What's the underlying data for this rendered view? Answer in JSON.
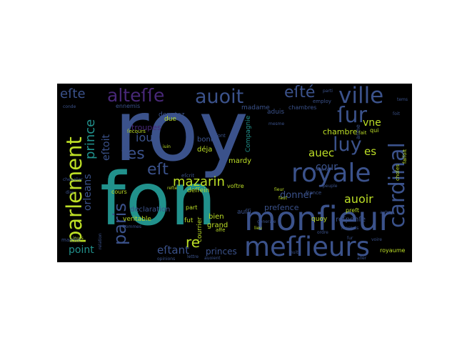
{
  "wordcloud": {
    "background": "#000000",
    "words": [
      {
        "text": "roy",
        "color": "#3b528b"
      },
      {
        "text": "fon",
        "color": "#21918c"
      },
      {
        "text": "monſieur",
        "color": "#3b528b"
      },
      {
        "text": "meſſieurs",
        "color": "#3b528b"
      },
      {
        "text": "royale",
        "color": "#3b528b"
      },
      {
        "text": "ville",
        "color": "#3b528b"
      },
      {
        "text": "auoit",
        "color": "#3b528b"
      },
      {
        "text": "alteſſe",
        "color": "#482878"
      },
      {
        "text": "parlement",
        "color": "#bddf26"
      },
      {
        "text": "cardinal",
        "color": "#3b528b"
      },
      {
        "text": "paris",
        "color": "#3b528b"
      },
      {
        "text": "luy",
        "color": "#3b528b"
      },
      {
        "text": "ſur",
        "color": "#3b528b"
      },
      {
        "text": "eſté",
        "color": "#3b528b"
      },
      {
        "text": "eſte",
        "color": "#3b528b"
      },
      {
        "text": "prince",
        "color": "#21918c"
      },
      {
        "text": "mazarin",
        "color": "#bddf26"
      },
      {
        "text": "eſt",
        "color": "#3b528b"
      },
      {
        "text": "ſes",
        "color": "#3b528b"
      },
      {
        "text": "iour",
        "color": "#3b528b"
      },
      {
        "text": "cour",
        "color": "#3b528b"
      },
      {
        "text": "auoir",
        "color": "#bddf26"
      },
      {
        "text": "auec",
        "color": "#bddf26"
      },
      {
        "text": "es",
        "color": "#bddf26"
      },
      {
        "text": "vne",
        "color": "#bddf26"
      },
      {
        "text": "eſtoit",
        "color": "#3b528b"
      },
      {
        "text": "orleans",
        "color": "#3b528b"
      },
      {
        "text": "point",
        "color": "#21918c"
      },
      {
        "text": "eſtant",
        "color": "#3b528b"
      },
      {
        "text": "re",
        "color": "#bddf26"
      },
      {
        "text": "princes",
        "color": "#3b528b"
      },
      {
        "text": "donner",
        "color": "#3b528b"
      },
      {
        "text": "chambre",
        "color": "#bddf26"
      },
      {
        "text": "reſponſe",
        "color": "#3b528b"
      },
      {
        "text": "preſence",
        "color": "#3b528b"
      },
      {
        "text": "troupes",
        "color": "#482878"
      },
      {
        "text": "mardy",
        "color": "#bddf26"
      },
      {
        "text": "bien",
        "color": "#bddf26"
      },
      {
        "text": "grand",
        "color": "#bddf26"
      },
      {
        "text": "déja",
        "color": "#bddf26"
      },
      {
        "text": "bonne",
        "color": "#3b528b"
      },
      {
        "text": "deſſein",
        "color": "#bddf26"
      },
      {
        "text": "declaration",
        "color": "#3b528b"
      },
      {
        "text": "veritable",
        "color": "#bddf26"
      },
      {
        "text": "fut",
        "color": "#bddf26"
      },
      {
        "text": "courrier",
        "color": "#bddf26"
      },
      {
        "text": "cours",
        "color": "#bddf26"
      },
      {
        "text": "voſtre",
        "color": "#bddf26"
      },
      {
        "text": "Compagnie",
        "color": "#21918c"
      },
      {
        "text": "madame",
        "color": "#3b528b"
      },
      {
        "text": "deputez",
        "color": "#3b528b"
      },
      {
        "text": "ennemis",
        "color": "#3b528b"
      },
      {
        "text": "aduis",
        "color": "#3b528b"
      },
      {
        "text": "chambres",
        "color": "#3b528b"
      },
      {
        "text": "eſcrit",
        "color": "#3b528b"
      },
      {
        "text": "quoy",
        "color": "#bddf26"
      },
      {
        "text": "royaume",
        "color": "#bddf26"
      },
      {
        "text": "france",
        "color": "#3b528b"
      },
      {
        "text": "fait",
        "color": "#bddf26"
      },
      {
        "text": "arme",
        "color": "#3b528b"
      },
      {
        "text": "qui",
        "color": "#bddf26"
      },
      {
        "text": "choſes",
        "color": "#bddf26"
      },
      {
        "text": "faiſoit",
        "color": "#bddf26"
      },
      {
        "text": "preſt",
        "color": "#bddf26"
      },
      {
        "text": "due",
        "color": "#bddf26"
      },
      {
        "text": "part",
        "color": "#bddf26"
      },
      {
        "text": "affe",
        "color": "#bddf26"
      },
      {
        "text": "ſecours",
        "color": "#bddf26"
      },
      {
        "text": "iuin",
        "color": "#bddf26"
      },
      {
        "text": "iours",
        "color": "#bddf26"
      },
      {
        "text": "faut",
        "color": "#bddf26"
      },
      {
        "text": "reſte",
        "color": "#bddf26"
      },
      {
        "text": "lieu",
        "color": "#bddf26"
      },
      {
        "text": "ſieur",
        "color": "#bddf26"
      },
      {
        "text": "ſont",
        "color": "#3b528b"
      },
      {
        "text": "auſſi",
        "color": "#3b528b"
      },
      {
        "text": "peuple",
        "color": "#3b528b"
      },
      {
        "text": "employ",
        "color": "#3b528b"
      },
      {
        "text": "parti",
        "color": "#3b528b"
      },
      {
        "text": "mesme",
        "color": "#3b528b"
      },
      {
        "text": "generale",
        "color": "#3b528b"
      },
      {
        "text": "liberte",
        "color": "#3b528b"
      },
      {
        "text": "opinions",
        "color": "#3b528b"
      },
      {
        "text": "hommes",
        "color": "#3b528b"
      },
      {
        "text": "maieſté",
        "color": "#3b528b"
      },
      {
        "text": "relation",
        "color": "#3b528b"
      },
      {
        "text": "lettre",
        "color": "#3b528b"
      },
      {
        "text": "auoient",
        "color": "#3b528b"
      },
      {
        "text": "nuit",
        "color": "#3b528b"
      },
      {
        "text": "ordre",
        "color": "#3b528b"
      },
      {
        "text": "aller",
        "color": "#3b528b"
      },
      {
        "text": "cheualier",
        "color": "#3b528b"
      },
      {
        "text": "ſur",
        "color": "#3b528b"
      },
      {
        "text": "voire",
        "color": "#3b528b"
      },
      {
        "text": "dire",
        "color": "#3b528b"
      },
      {
        "text": "ſoit",
        "color": "#3b528b"
      },
      {
        "text": "conde",
        "color": "#3b528b"
      },
      {
        "text": "marquis",
        "color": "#3b528b"
      },
      {
        "text": "tems",
        "color": "#3b528b"
      },
      {
        "text": "autres",
        "color": "#3b528b"
      }
    ]
  }
}
